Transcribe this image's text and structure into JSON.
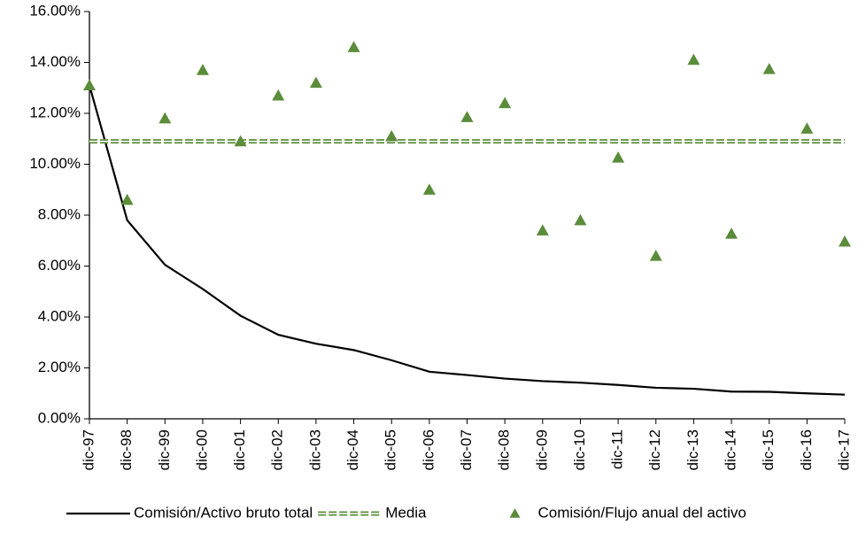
{
  "chart_data": {
    "type": "line",
    "categories": [
      "dic-97",
      "dic-98",
      "dic-99",
      "dic-00",
      "dic-01",
      "dic-02",
      "dic-03",
      "dic-04",
      "dic-05",
      "dic-06",
      "dic-07",
      "dic-08",
      "dic-09",
      "dic-10",
      "dic-11",
      "dic-12",
      "dic-13",
      "dic-14",
      "dic-15",
      "dic-16",
      "dic-17"
    ],
    "series": [
      {
        "name": "Comisión/Activo bruto total",
        "color": "#000000",
        "style": "solid",
        "values": [
          13.1,
          7.8,
          6.05,
          5.1,
          4.05,
          3.3,
          2.95,
          2.7,
          2.3,
          1.85,
          1.72,
          1.58,
          1.48,
          1.42,
          1.33,
          1.22,
          1.18,
          1.07,
          1.06,
          1.0,
          0.95
        ]
      },
      {
        "name": "Media",
        "color": "#5b8c3a",
        "style": "dashed",
        "values": [
          10.9,
          10.9,
          10.9,
          10.9,
          10.9,
          10.9,
          10.9,
          10.9,
          10.9,
          10.9,
          10.9,
          10.9,
          10.9,
          10.9,
          10.9,
          10.9,
          10.9,
          10.9,
          10.9,
          10.9,
          10.9
        ]
      },
      {
        "name": "Comisión/Flujo anual del activo",
        "color": "#5b8c3a",
        "style": "marker",
        "values": [
          13.1,
          8.6,
          11.8,
          13.7,
          10.9,
          12.7,
          13.2,
          14.6,
          11.1,
          9.0,
          11.85,
          12.4,
          7.4,
          7.8,
          10.26,
          6.4,
          14.1,
          7.27,
          13.74,
          11.4,
          6.96
        ]
      }
    ],
    "ylim": [
      0,
      16
    ],
    "yticks": [
      {
        "value": 0,
        "label": "0.00%"
      },
      {
        "value": 2,
        "label": "2.00%"
      },
      {
        "value": 4,
        "label": "4.00%"
      },
      {
        "value": 6,
        "label": "6.00%"
      },
      {
        "value": 8,
        "label": "8.00%"
      },
      {
        "value": 10,
        "label": "10.00%"
      },
      {
        "value": 12,
        "label": "12.00%"
      },
      {
        "value": 14,
        "label": "14.00%"
      },
      {
        "value": 16,
        "label": "16.00%"
      }
    ],
    "grid": false,
    "legend": "bottom"
  }
}
